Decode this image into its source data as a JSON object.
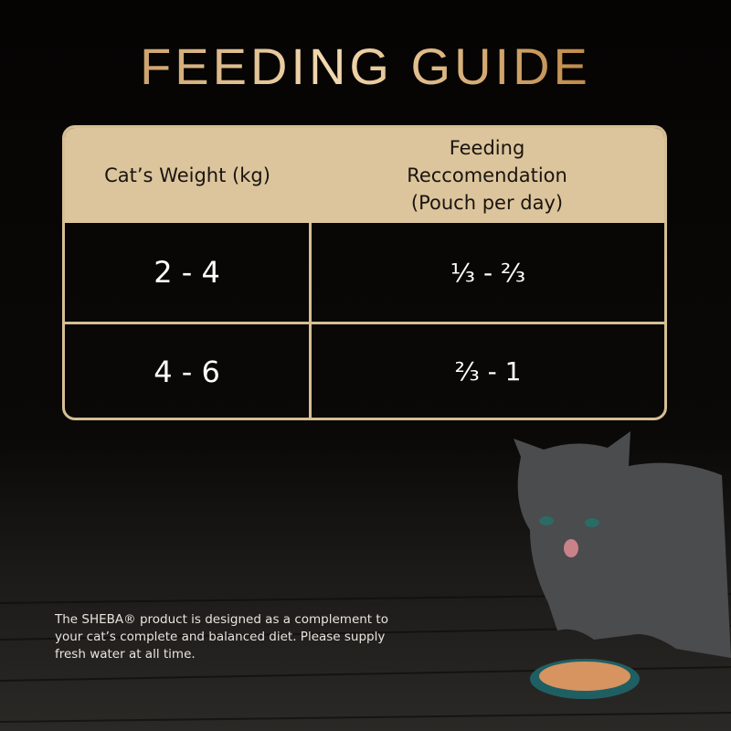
{
  "title": "FEEDING GUIDE",
  "table": {
    "headers": [
      "Cat’s Weight (kg)",
      "Feeding Reccomendation (Pouch per day)"
    ],
    "rows": [
      [
        "2 - 4",
        "⅓ - ⅔"
      ],
      [
        "4 - 6",
        "⅔ - 1"
      ]
    ]
  },
  "footnote": "The SHEBA® product is designed as a complement to your cat’s complete and balanced diet. Please supply fresh water at all time."
}
